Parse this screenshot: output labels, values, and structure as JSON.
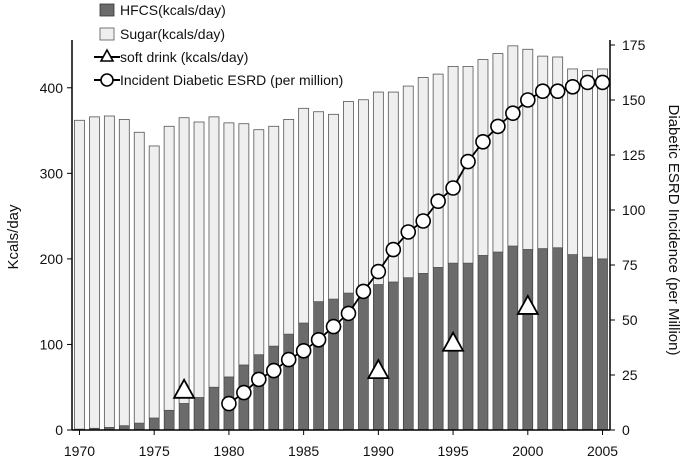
{
  "chart_data": {
    "type": "bar",
    "stacked": true,
    "x": [
      1970,
      1971,
      1972,
      1973,
      1974,
      1975,
      1976,
      1977,
      1978,
      1979,
      1980,
      1981,
      1982,
      1983,
      1984,
      1985,
      1986,
      1987,
      1988,
      1989,
      1990,
      1991,
      1992,
      1993,
      1994,
      1995,
      1996,
      1997,
      1998,
      1999,
      2000,
      2001,
      2002,
      2003,
      2004,
      2005
    ],
    "xlim": [
      1969.5,
      2005.5
    ],
    "x_ticks": [
      1970,
      1975,
      1980,
      1985,
      1990,
      1995,
      2000,
      2005
    ],
    "ylabel": "Kcals/day",
    "ylim": [
      0,
      450
    ],
    "y_ticks": [
      0,
      100,
      200,
      300,
      400
    ],
    "y2label": "Diabetic ESRD Incidence (per Million)",
    "y2lim": [
      0,
      175
    ],
    "y2_ticks": [
      0,
      25,
      50,
      75,
      100,
      125,
      150,
      175
    ],
    "grid": false,
    "legend_position": "top-left",
    "series": [
      {
        "name": "HFCS(kcals/day)",
        "type": "bar",
        "axis": "left",
        "color": "#6b6b6b",
        "values": [
          1,
          2,
          3,
          5,
          8,
          14,
          23,
          31,
          38,
          50,
          62,
          76,
          88,
          98,
          112,
          125,
          150,
          153,
          160,
          165,
          170,
          173,
          178,
          183,
          190,
          195,
          195,
          204,
          208,
          215,
          211,
          212,
          213,
          205,
          202,
          200
        ]
      },
      {
        "name": "Sugar(kcals/day)",
        "type": "bar",
        "axis": "left",
        "color": "#efefef",
        "values": [
          361,
          364,
          364,
          358,
          340,
          318,
          332,
          334,
          322,
          316,
          297,
          282,
          263,
          257,
          251,
          251,
          222,
          216,
          224,
          221,
          225,
          222,
          224,
          229,
          226,
          230,
          230,
          229,
          232,
          234,
          234,
          225,
          223,
          217,
          218,
          222
        ]
      },
      {
        "name": "soft drink (kcals/day)",
        "type": "marker",
        "marker": "triangle",
        "axis": "left",
        "points": [
          [
            1977,
            47
          ],
          [
            1990,
            70
          ],
          [
            1995,
            102
          ],
          [
            2000,
            145
          ]
        ]
      },
      {
        "name": "Incident Diabetic ESRD (per million)",
        "type": "line",
        "marker": "circle",
        "axis": "right",
        "points": [
          [
            1980,
            12
          ],
          [
            1981,
            17
          ],
          [
            1982,
            23
          ],
          [
            1983,
            27
          ],
          [
            1984,
            32
          ],
          [
            1985,
            36
          ],
          [
            1986,
            41
          ],
          [
            1987,
            47
          ],
          [
            1988,
            53
          ],
          [
            1989,
            63
          ],
          [
            1990,
            72
          ],
          [
            1991,
            82
          ],
          [
            1992,
            90
          ],
          [
            1993,
            95
          ],
          [
            1994,
            104
          ],
          [
            1995,
            110
          ],
          [
            1996,
            122
          ],
          [
            1997,
            131
          ],
          [
            1998,
            138
          ],
          [
            1999,
            144
          ],
          [
            2000,
            150
          ],
          [
            2001,
            154
          ],
          [
            2002,
            154
          ],
          [
            2003,
            156
          ],
          [
            2004,
            158
          ],
          [
            2005,
            158
          ]
        ]
      }
    ]
  }
}
